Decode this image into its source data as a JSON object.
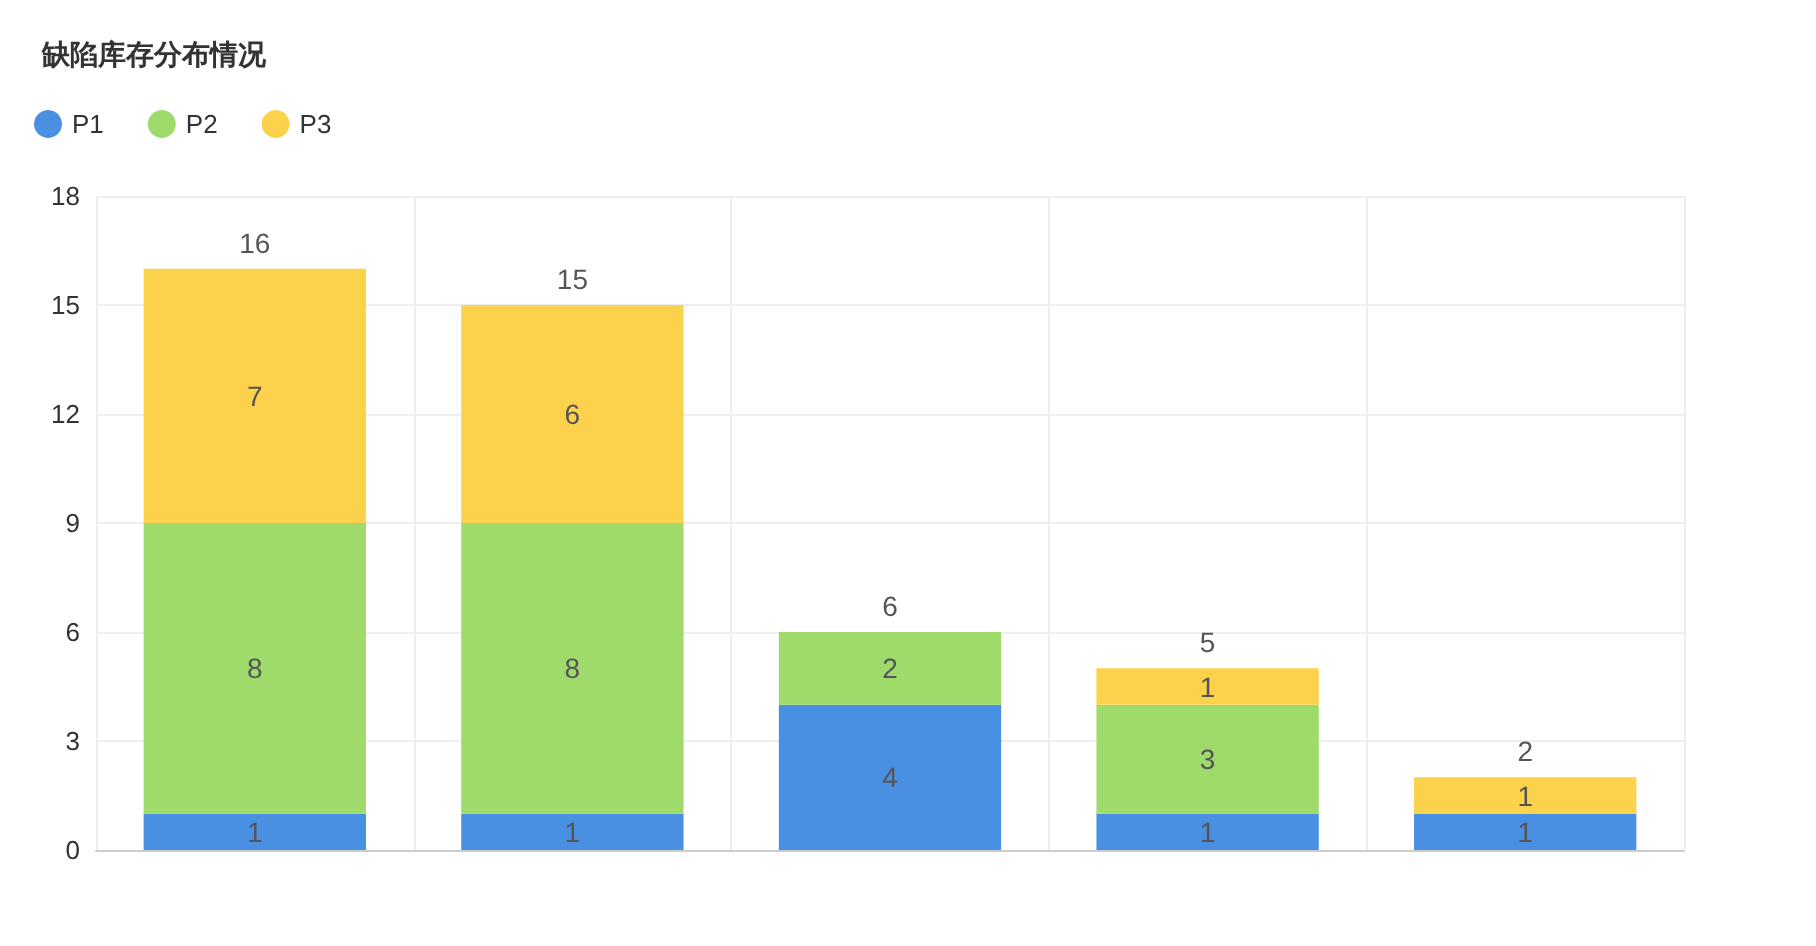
{
  "chart_data": {
    "type": "bar",
    "title": "缺陷库存分布情况",
    "categories": [
      null,
      null,
      null,
      null,
      null
    ],
    "stacked": true,
    "legend": "top left",
    "grid": true,
    "ylim": [
      0,
      18
    ],
    "yticks": [
      0,
      3,
      6,
      9,
      12,
      15,
      18
    ],
    "series": [
      {
        "name": "P1",
        "color": "#4a90e2",
        "values": [
          1,
          1,
          4,
          1,
          1
        ],
        "value_labels": [
          "1",
          "1",
          "4",
          "1",
          "1"
        ]
      },
      {
        "name": "P2",
        "color": "#9fdb6a",
        "values": [
          8,
          8,
          2,
          3,
          0
        ],
        "value_labels": [
          "8",
          "8",
          "2",
          "3",
          null
        ]
      },
      {
        "name": "P3",
        "color": "#fcd14c",
        "values": [
          7,
          6,
          0,
          1,
          1
        ],
        "value_labels": [
          "7",
          "6",
          null,
          "1",
          "1"
        ]
      }
    ],
    "totals": [
      "16",
      "15",
      "6",
      "5",
      "2"
    ]
  }
}
